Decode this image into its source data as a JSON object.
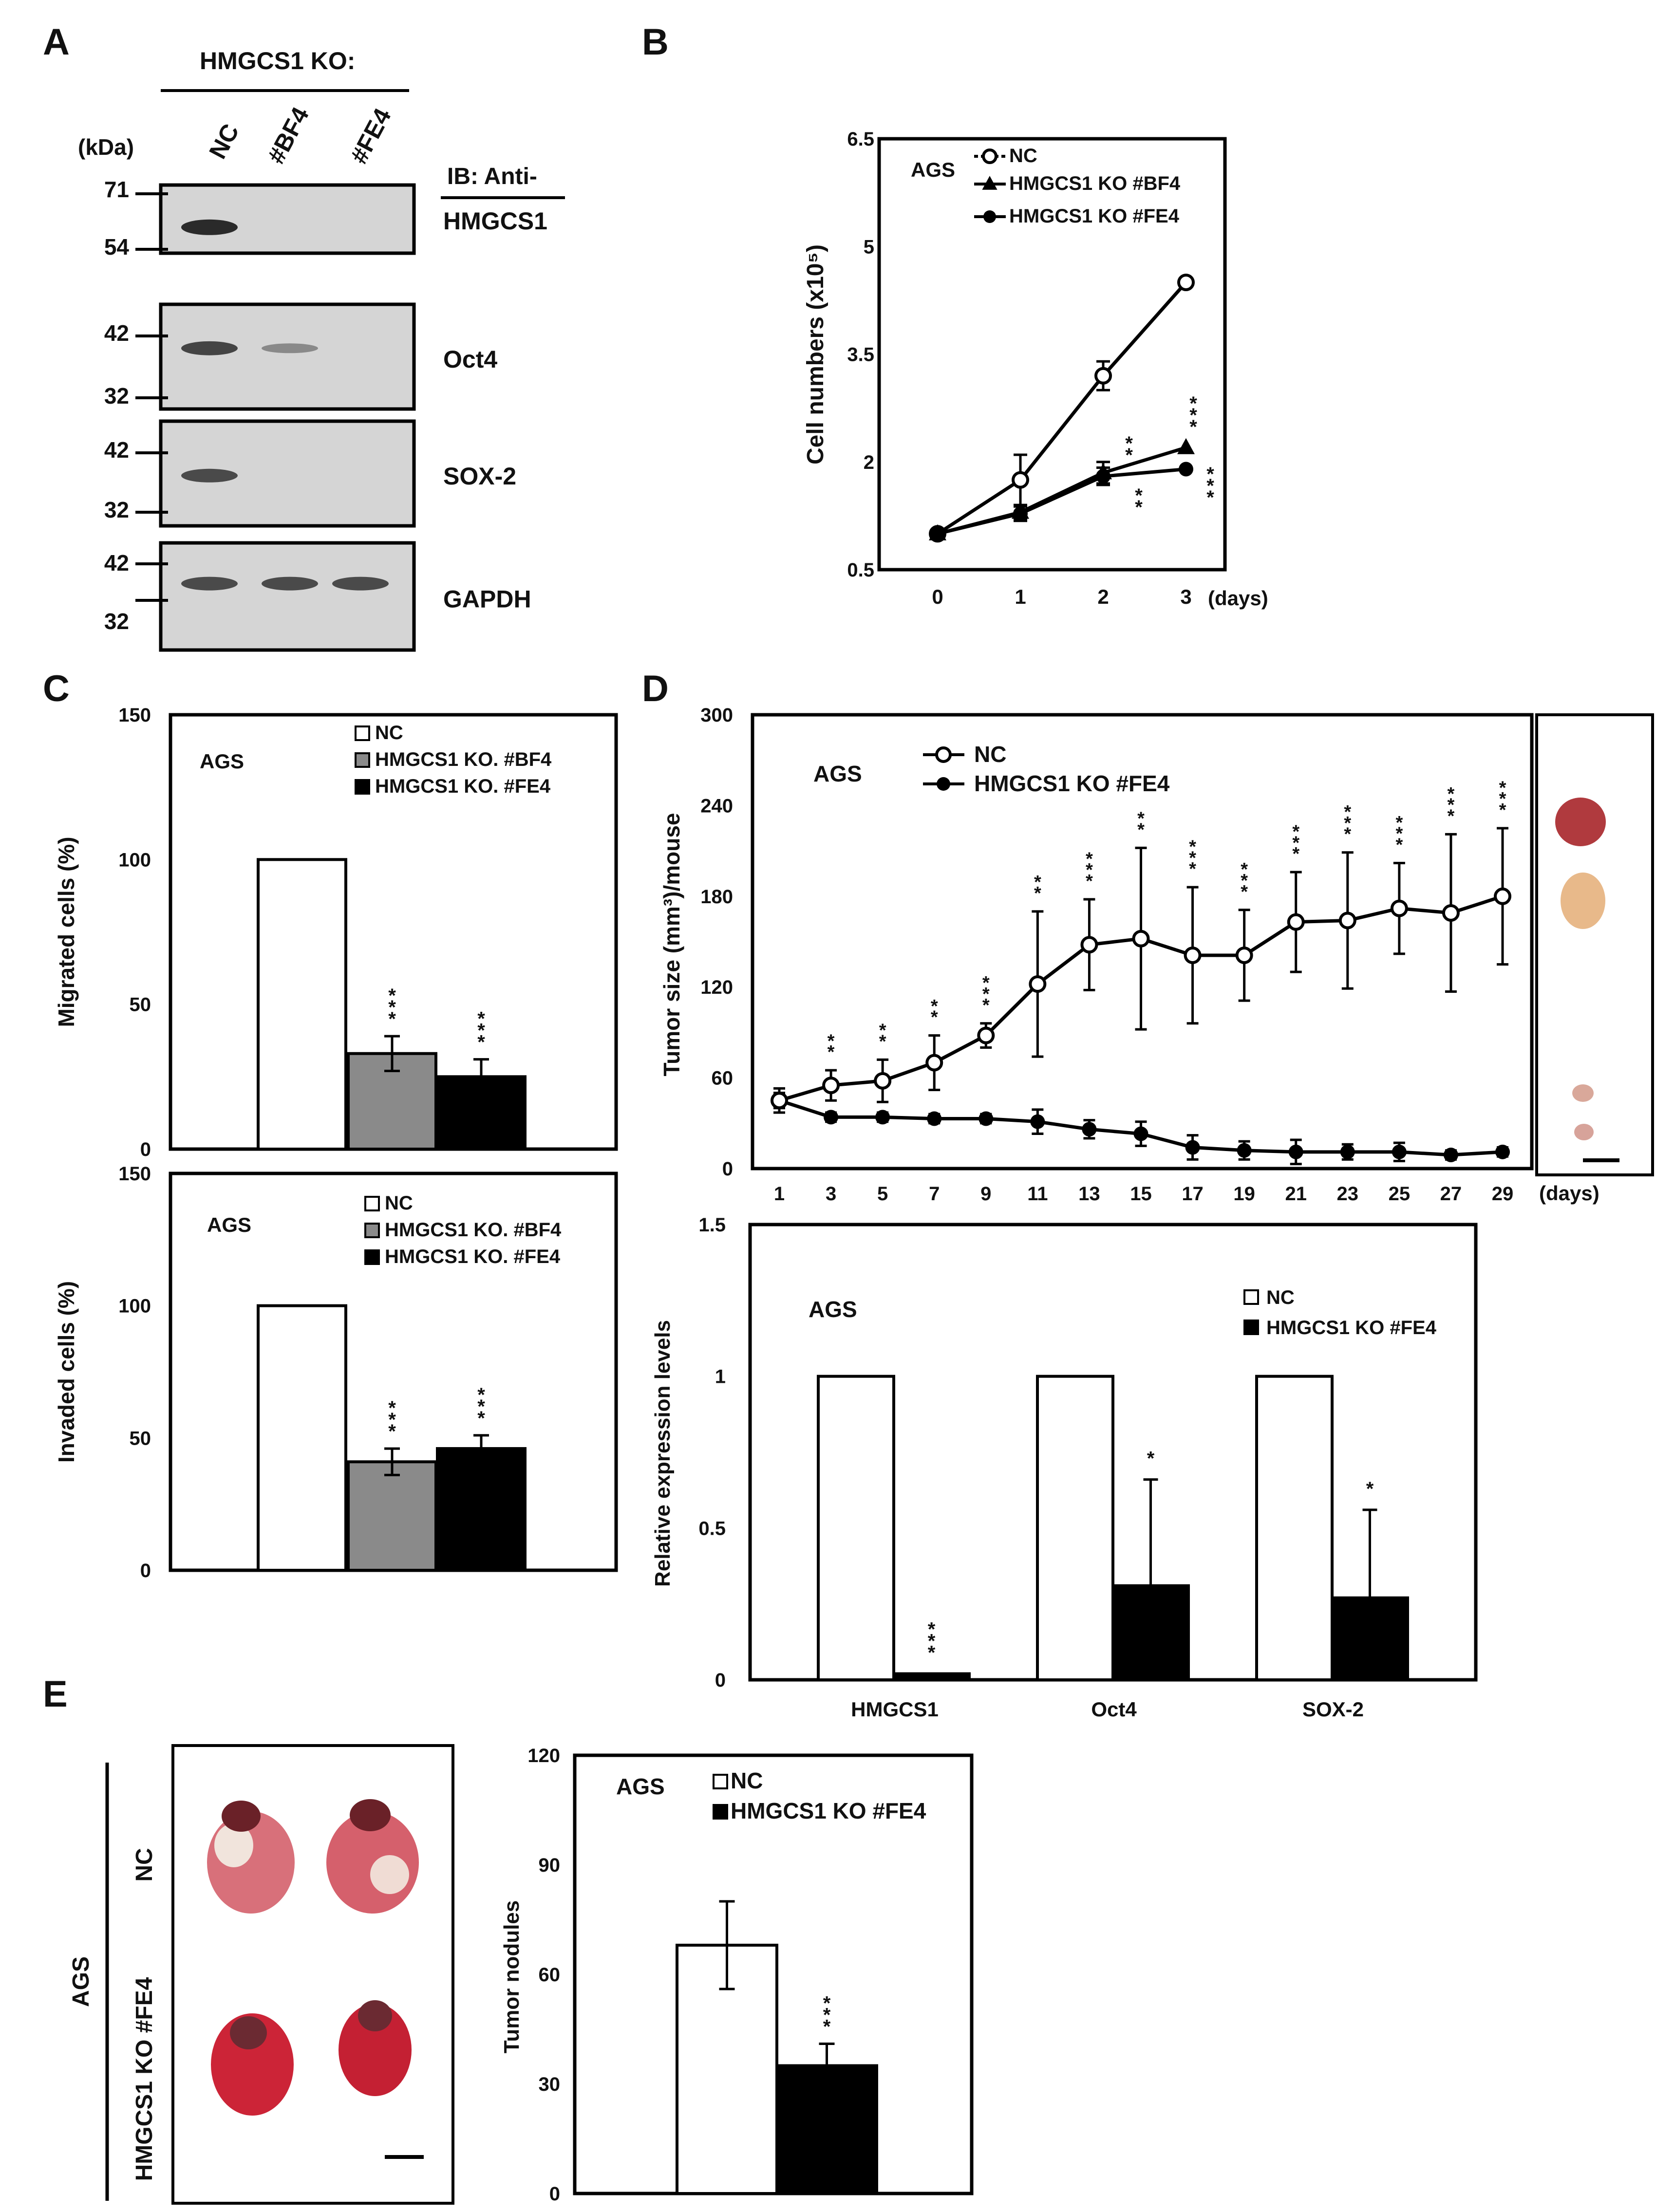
{
  "figure": {
    "panel_labels": [
      "A",
      "B",
      "C",
      "D",
      "E"
    ],
    "colors": {
      "white_bar": "#ffffff",
      "gray_bar": "#8a8a8a",
      "black_bar": "#000000",
      "blot_bg": "#d5d5d5",
      "band": "#2a2a2a",
      "lung": "#c8283a",
      "tumor": "#e7b07a"
    }
  },
  "panelA": {
    "header": "HMGCS1 KO:",
    "kda_label": "(kDa)",
    "lanes": [
      "NC",
      "#BF4",
      "#FE4"
    ],
    "ib_label": "IB: Anti-",
    "blots": [
      {
        "name": "HMGCS1",
        "markers": [
          "71",
          "54"
        ],
        "bands": [
          1.0,
          0.0,
          0.0
        ]
      },
      {
        "name": "Oct4",
        "markers": [
          "42",
          "32"
        ],
        "bands": [
          0.8,
          0.25,
          0.0
        ]
      },
      {
        "name": "SOX-2",
        "markers": [
          "42",
          "32"
        ],
        "bands": [
          0.75,
          0.0,
          0.0
        ]
      },
      {
        "name": "GAPDH",
        "markers": [
          "42",
          "32"
        ],
        "bands": [
          0.75,
          0.75,
          0.75
        ]
      }
    ]
  },
  "chart_data": [
    {
      "id": "B",
      "type": "line",
      "title": "",
      "cell_line": "AGS",
      "ylabel": "Cell numbers (x10⁵)",
      "xlabel": "(days)",
      "x": [
        0,
        1,
        2,
        3
      ],
      "ylim": [
        0.5,
        6.5
      ],
      "yticks": [
        "6.5",
        "5",
        "3.5",
        "2",
        "0.5"
      ],
      "series": [
        {
          "name": "NC",
          "marker": "open-circle",
          "values": [
            1.0,
            1.75,
            3.2,
            4.5
          ],
          "errors": [
            0,
            0.35,
            0.2,
            0
          ]
        },
        {
          "name": "HMGCS1 KO #BF4",
          "marker": "triangle",
          "values": [
            1.0,
            1.3,
            1.85,
            2.2
          ],
          "errors": [
            0,
            0.1,
            0.15,
            0
          ],
          "sig": [
            "",
            "",
            "**",
            "***"
          ]
        },
        {
          "name": "HMGCS1 KO #FE4",
          "marker": "filled-circle",
          "values": [
            1.0,
            1.28,
            1.8,
            1.9
          ],
          "errors": [
            0,
            0.1,
            0.12,
            0
          ],
          "sig": [
            "",
            "",
            "**",
            "***"
          ]
        }
      ]
    },
    {
      "id": "C-migration",
      "type": "bar",
      "cell_line": "AGS",
      "ylabel": "Migrated cells  (%)",
      "ylim": [
        0,
        150
      ],
      "yticks": [
        "150",
        "100",
        "50",
        "0"
      ],
      "categories": [
        "NC",
        "HMGCS1 KO. #BF4",
        "HMGCS1 KO. #FE4"
      ],
      "values": [
        100,
        33,
        25
      ],
      "errors": [
        0,
        6,
        6
      ],
      "sig": [
        "",
        "***",
        "***"
      ]
    },
    {
      "id": "C-invasion",
      "type": "bar",
      "cell_line": "AGS",
      "ylabel": "Invaded cells  (%)",
      "ylim": [
        0,
        150
      ],
      "yticks": [
        "150",
        "100",
        "50",
        "0"
      ],
      "categories": [
        "NC",
        "HMGCS1 KO. #BF4",
        "HMGCS1 KO. #FE4"
      ],
      "values": [
        100,
        41,
        46
      ],
      "errors": [
        0,
        5,
        5
      ],
      "sig": [
        "",
        "***",
        "***"
      ]
    },
    {
      "id": "D-tumor",
      "type": "line",
      "cell_line": "AGS",
      "ylabel": "Tumor size (mm³)/mouse",
      "xlabel": "(days)",
      "ylim": [
        0,
        300
      ],
      "yticks": [
        "300",
        "240",
        "180",
        "120",
        "60",
        "0"
      ],
      "x": [
        1,
        3,
        5,
        7,
        9,
        11,
        13,
        15,
        17,
        19,
        21,
        23,
        25,
        27,
        29
      ],
      "series": [
        {
          "name": "NC",
          "marker": "open-circle",
          "values": [
            45,
            55,
            58,
            70,
            88,
            122,
            148,
            152,
            141,
            141,
            163,
            164,
            172,
            169,
            180
          ],
          "errors": [
            8,
            10,
            14,
            18,
            8,
            48,
            30,
            60,
            45,
            30,
            33,
            45,
            30,
            52,
            45
          ],
          "sig": [
            "",
            "**",
            "**",
            "**",
            "***",
            "**",
            "***",
            "**",
            "***",
            "***",
            "***",
            "***",
            "***",
            "***",
            "***"
          ]
        },
        {
          "name": "HMGCS1 KO #FE4",
          "marker": "filled-circle",
          "values": [
            45,
            34,
            34,
            33,
            33,
            31,
            26,
            23,
            14,
            12,
            11,
            11,
            11,
            9,
            11
          ],
          "errors": [
            5,
            3,
            3,
            3,
            3,
            8,
            6,
            8,
            8,
            6,
            8,
            5,
            6,
            3,
            3
          ]
        }
      ]
    },
    {
      "id": "D-expression",
      "type": "bar",
      "cell_line": "AGS",
      "ylabel": "Relative expression levels",
      "ylim": [
        0,
        1.5
      ],
      "yticks": [
        "1.5",
        "1",
        "0.5",
        "0"
      ],
      "categories": [
        "HMGCS1",
        "Oct4",
        "SOX-2"
      ],
      "series": [
        {
          "name": "NC",
          "values": [
            1,
            1,
            1
          ],
          "errors": [
            0,
            0,
            0
          ]
        },
        {
          "name": "HMGCS1 KO #FE4",
          "values": [
            0.02,
            0.31,
            0.27
          ],
          "errors": [
            0,
            0.35,
            0.29
          ],
          "sig": [
            "***",
            "*",
            "*"
          ]
        }
      ]
    },
    {
      "id": "E-nodules",
      "type": "bar",
      "cell_line": "AGS",
      "ylabel": "Tumor nodules",
      "ylim": [
        0,
        120
      ],
      "yticks": [
        "120",
        "90",
        "60",
        "30",
        "0"
      ],
      "categories": [
        "NC",
        "HMGCS1 KO #FE4"
      ],
      "values": [
        68,
        35
      ],
      "errors": [
        12,
        6
      ],
      "sig": [
        "",
        "***"
      ]
    }
  ],
  "panelE": {
    "group_label": "AGS",
    "row_labels": [
      "NC",
      "HMGCS1 KO #FE4"
    ]
  }
}
